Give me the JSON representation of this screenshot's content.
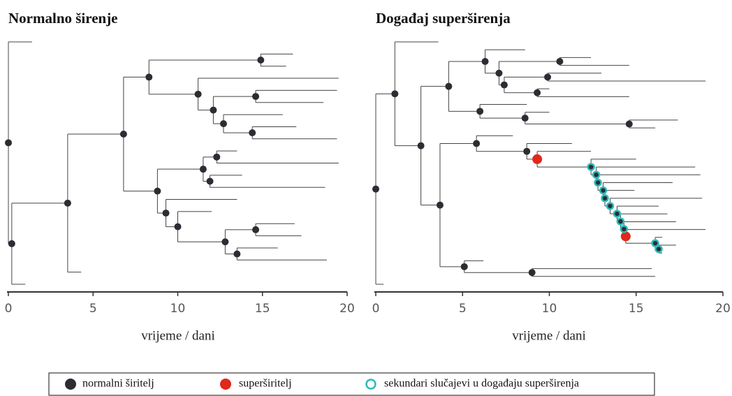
{
  "chart_data": [
    {
      "type": "tree",
      "title": "Normalno širenje",
      "xlabel": "vrijeme / dani",
      "xlim": [
        0,
        20
      ],
      "xticks": [
        0,
        5,
        10,
        15,
        20
      ],
      "tree": {
        "t": 0,
        "children": [
          {
            "t": 1.4
          },
          {
            "t": 0.2,
            "children": [
              {
                "t": 3.5,
                "children": [
                  {
                    "t": 6.8,
                    "children": [
                      {
                        "t": 8.3,
                        "children": [
                          {
                            "t": 14.9,
                            "children": [
                              {
                                "t": 16.8
                              },
                              {
                                "t": 16.4
                              }
                            ]
                          },
                          {
                            "t": 11.2,
                            "children": [
                              {
                                "t": 19.5
                              },
                              {
                                "t": 12.1,
                                "children": [
                                  {
                                    "t": 14.6,
                                    "children": [
                                      {
                                        "t": 19.4
                                      },
                                      {
                                        "t": 18.6
                                      }
                                    ]
                                  },
                                  {
                                    "t": 12.7,
                                    "children": [
                                      {
                                        "t": 16.2
                                      },
                                      {
                                        "t": 14.4,
                                        "children": [
                                          {
                                            "t": 17.0
                                          },
                                          {
                                            "t": 19.4
                                          }
                                        ]
                                      }
                                    ]
                                  }
                                ]
                              }
                            ]
                          }
                        ]
                      },
                      {
                        "t": 8.8,
                        "children": [
                          {
                            "t": 11.5,
                            "children": [
                              {
                                "t": 12.3,
                                "children": [
                                  {
                                    "t": 13.5
                                  },
                                  {
                                    "t": 19.5
                                  }
                                ]
                              },
                              {
                                "t": 11.9,
                                "children": [
                                  {
                                    "t": 13.8
                                  },
                                  {
                                    "t": 18.7
                                  }
                                ]
                              }
                            ]
                          },
                          {
                            "t": 9.3,
                            "children": [
                              {
                                "t": 13.5
                              },
                              {
                                "t": 10.0,
                                "children": [
                                  {
                                    "t": 12.0
                                  },
                                  {
                                    "t": 12.8,
                                    "children": [
                                      {
                                        "t": 14.6,
                                        "children": [
                                          {
                                            "t": 16.9
                                          },
                                          {
                                            "t": 17.3
                                          }
                                        ]
                                      },
                                      {
                                        "t": 13.5,
                                        "children": [
                                          {
                                            "t": 15.9
                                          },
                                          {
                                            "t": 18.8
                                          }
                                        ]
                                      }
                                    ]
                                  }
                                ]
                              }
                            ]
                          }
                        ]
                      }
                    ]
                  },
                  {
                    "t": 4.3
                  }
                ]
              },
              {
                "t": 1.0
              }
            ]
          }
        ]
      }
    },
    {
      "type": "tree",
      "title": "Događaj superširenja",
      "xlabel": "vrijeme / dani",
      "xlim": [
        0,
        20
      ],
      "xticks": [
        0,
        5,
        10,
        15,
        20
      ],
      "tree": {
        "t": 0,
        "children": [
          {
            "t": 1.1,
            "children": [
              {
                "t": 3.6
              },
              {
                "t": 2.6,
                "children": [
                  {
                    "t": 4.2,
                    "children": [
                      {
                        "t": 6.3,
                        "children": [
                          {
                            "t": 8.6
                          },
                          {
                            "t": 7.1,
                            "children": [
                              {
                                "t": 10.6,
                                "children": [
                                  {
                                    "t": 12.4
                                  },
                                  {
                                    "t": 14.6
                                  }
                                ]
                              },
                              {
                                "t": 7.4,
                                "children": [
                                  {
                                    "t": 9.9,
                                    "children": [
                                      {
                                        "t": 13.0
                                      },
                                      {
                                        "t": 19.0
                                      }
                                    ]
                                  },
                                  {
                                    "t": 9.3,
                                    "children": [
                                      {
                                        "t": 10.0
                                      },
                                      {
                                        "t": 14.6
                                      }
                                    ]
                                  }
                                ]
                              }
                            ]
                          }
                        ]
                      },
                      {
                        "t": 6.0,
                        "children": [
                          {
                            "t": 8.7
                          },
                          {
                            "t": 8.6,
                            "children": [
                              {
                                "t": 10.0
                              },
                              {
                                "t": 14.6,
                                "children": [
                                  {
                                    "t": 17.4
                                  },
                                  {
                                    "t": 16.1
                                  }
                                ]
                              }
                            ]
                          }
                        ]
                      }
                    ]
                  },
                  {
                    "t": 3.7,
                    "children": [
                      {
                        "t": 5.8,
                        "children": [
                          {
                            "t": 7.9
                          },
                          {
                            "t": 8.7,
                            "children": [
                              {
                                "t": 11.3
                              },
                              {
                                "t": 9.3,
                                "marker": 1,
                                "children": [
                                  {
                                    "t": 12.4
                                  },
                                  {
                                    "t": 12.4,
                                    "marker": 2,
                                    "children": [
                                      {
                                        "t": 15.0
                                      },
                                      {
                                        "t": 12.7,
                                        "marker": 2,
                                        "children": [
                                          {
                                            "t": 18.4
                                          },
                                          {
                                            "t": 12.8,
                                            "marker": 2,
                                            "children": [
                                              {
                                                "t": 18.7
                                              },
                                              {
                                                "t": 13.1,
                                                "marker": 2,
                                                "children": [
                                                  {
                                                    "t": 17.1
                                                  },
                                                  {
                                                    "t": 13.2,
                                                    "marker": 2,
                                                    "children": [
                                                      {
                                                        "t": 14.9
                                                      },
                                                      {
                                                        "t": 13.5,
                                                        "marker": 2,
                                                        "children": [
                                                          {
                                                            "t": 18.8
                                                          },
                                                          {
                                                            "t": 13.9,
                                                            "marker": 2,
                                                            "children": [
                                                              {
                                                                "t": 16.3
                                                              },
                                                              {
                                                                "t": 14.1,
                                                                "marker": 2,
                                                                "children": [
                                                                  {
                                                                    "t": 16.8
                                                                  },
                                                                  {
                                                                    "t": 14.3,
                                                                    "marker": 2,
                                                                    "children": [
                                                                      {
                                                                        "t": 17.3
                                                                      },
                                                                      {
                                                                        "t": 14.4,
                                                                        "marker": 1,
                                                                        "children": [
                                                                          {
                                                                            "t": 19.0
                                                                          },
                                                                          {
                                                                            "t": 16.1,
                                                                            "marker": 2,
                                                                            "children": [
                                                                              {
                                                                                "t": 16.5
                                                                              },
                                                                              {
                                                                                "t": 16.3,
                                                                                "marker": 2,
                                                                                "children": [
                                                                                  {
                                                                                    "t": 17.3
                                                                                  },
                                                                                  {
                                                                                    "t": 16.5
                                                                                  }
                                                                                ]
                                                                              }
                                                                            ]
                                                                          }
                                                                        ]
                                                                      }
                                                                    ]
                                                                  }
                                                                ]
                                                              }
                                                            ]
                                                          }
                                                        ]
                                                      }
                                                    ]
                                                  }
                                                ]
                                              }
                                            ]
                                          }
                                        ]
                                      }
                                    ]
                                  }
                                ]
                              }
                            ]
                          }
                        ]
                      },
                      {
                        "t": 5.1,
                        "children": [
                          {
                            "t": 6.2
                          },
                          {
                            "t": 9.0,
                            "children": [
                              {
                                "t": 15.9
                              },
                              {
                                "t": 16.1
                              }
                            ]
                          }
                        ]
                      }
                    ]
                  }
                ]
              }
            ]
          },
          {
            "t": 0.45
          }
        ]
      }
    }
  ],
  "legend": [
    {
      "label": "normalni širitelj",
      "color": "#2b2d33"
    },
    {
      "label": "superširitelj",
      "color": "#e0281b"
    },
    {
      "label": "sekundari slučajevi u događaju superširenja",
      "color": "#2bbcbc"
    }
  ]
}
